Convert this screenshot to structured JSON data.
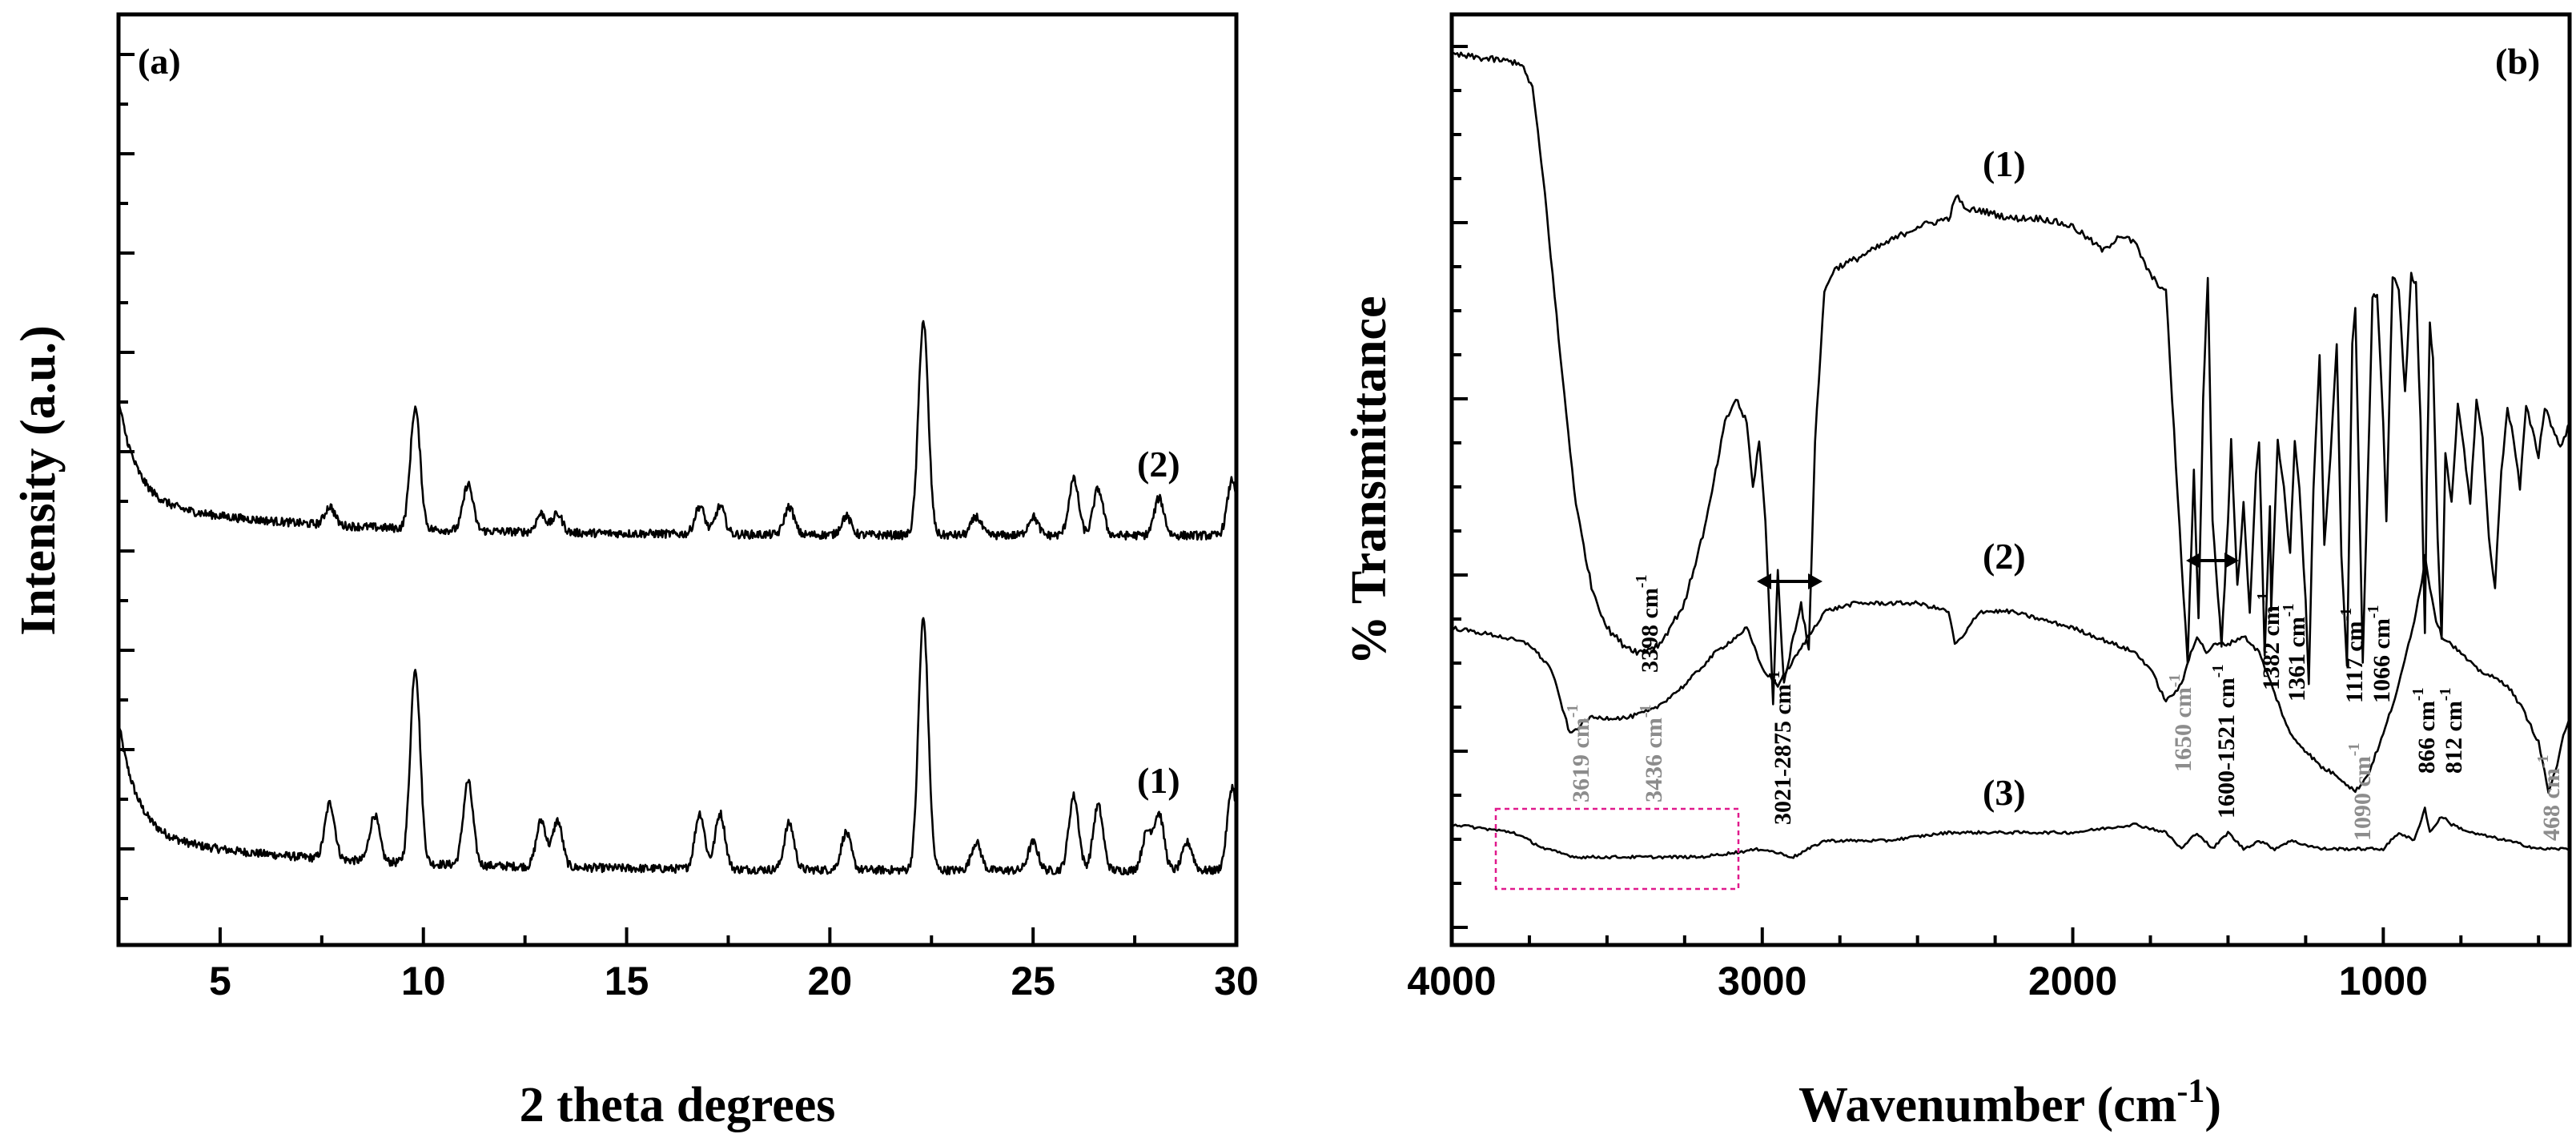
{
  "chart_data": [
    {
      "type": "line",
      "panel": "(a)",
      "title": "",
      "xlabel": "2 theta degrees",
      "ylabel": "Intensity (a.u.)",
      "xlim": [
        2.5,
        30
      ],
      "ylim": [
        0,
        100
      ],
      "xticks": [
        5,
        10,
        15,
        20,
        25,
        30
      ],
      "yticks": "unlabeled",
      "series": [
        {
          "name": "(1)",
          "baseline": 8,
          "start_level": 30,
          "peaks": [
            [
              7.7,
              6
            ],
            [
              8.8,
              5
            ],
            [
              9.8,
              21
            ],
            [
              11.1,
              9
            ],
            [
              12.9,
              5
            ],
            [
              13.3,
              5
            ],
            [
              16.8,
              6
            ],
            [
              17.3,
              6
            ],
            [
              19.0,
              5
            ],
            [
              20.4,
              4
            ],
            [
              22.3,
              27
            ],
            [
              23.6,
              3
            ],
            [
              25.0,
              3
            ],
            [
              26.0,
              8
            ],
            [
              26.6,
              7
            ],
            [
              27.8,
              4
            ],
            [
              28.1,
              6
            ],
            [
              28.8,
              3
            ],
            [
              29.9,
              9
            ]
          ]
        },
        {
          "name": "(2)",
          "baseline": 44,
          "start_level": 64,
          "peaks": [
            [
              7.7,
              2
            ],
            [
              9.8,
              13
            ],
            [
              11.1,
              5
            ],
            [
              12.9,
              2
            ],
            [
              13.3,
              2
            ],
            [
              16.8,
              3
            ],
            [
              17.3,
              3
            ],
            [
              19.0,
              3
            ],
            [
              20.4,
              2
            ],
            [
              22.3,
              23
            ],
            [
              23.6,
              2
            ],
            [
              25.0,
              2
            ],
            [
              26.0,
              6
            ],
            [
              26.6,
              5
            ],
            [
              28.1,
              4
            ],
            [
              29.9,
              6
            ]
          ]
        }
      ]
    },
    {
      "type": "line",
      "panel": "(b)",
      "title": "",
      "xlabel": "Wavenumber (cm",
      "xlabel_sup": "-1",
      "xlabel_close": ")",
      "ylabel": "% Transmittance",
      "xlim": [
        4000,
        400
      ],
      "ylim": [
        0,
        100
      ],
      "xticks": [
        4000,
        3000,
        2000,
        1000
      ],
      "yticks": "unlabeled",
      "series": [
        {
          "name": "(1)",
          "points": [
            [
              4000,
              97
            ],
            [
              3780,
              96
            ],
            [
              3740,
              93
            ],
            [
              3700,
              80
            ],
            [
              3650,
              60
            ],
            [
              3600,
              42
            ],
            [
              3550,
              32
            ],
            [
              3500,
              27
            ],
            [
              3450,
              25
            ],
            [
              3398,
              24
            ],
            [
              3330,
              25
            ],
            [
              3250,
              30
            ],
            [
              3180,
              40
            ],
            [
              3120,
              52
            ],
            [
              3085,
              55
            ],
            [
              3050,
              52
            ],
            [
              3030,
              44
            ],
            [
              3010,
              50
            ],
            [
              2990,
              40
            ],
            [
              2965,
              18
            ],
            [
              2950,
              34
            ],
            [
              2930,
              20
            ],
            [
              2900,
              26
            ],
            [
              2875,
              30
            ],
            [
              2850,
              24
            ],
            [
              2830,
              50
            ],
            [
              2800,
              68
            ],
            [
              2780,
              70
            ],
            [
              2760,
              71
            ],
            [
              2700,
              72
            ],
            [
              2600,
              74
            ],
            [
              2500,
              76
            ],
            [
              2400,
              77
            ],
            [
              2370,
              80
            ],
            [
              2350,
              78
            ],
            [
              2300,
              78
            ],
            [
              2200,
              77
            ],
            [
              2100,
              77
            ],
            [
              2000,
              76
            ],
            [
              1900,
              73
            ],
            [
              1850,
              75
            ],
            [
              1800,
              74
            ],
            [
              1750,
              70
            ],
            [
              1700,
              68
            ],
            [
              1680,
              55
            ],
            [
              1650,
              35
            ],
            [
              1630,
              23
            ],
            [
              1610,
              46
            ],
            [
              1595,
              28
            ],
            [
              1580,
              55
            ],
            [
              1565,
              70
            ],
            [
              1550,
              40
            ],
            [
              1521,
              25
            ],
            [
              1500,
              40
            ],
            [
              1490,
              50
            ],
            [
              1470,
              32
            ],
            [
              1450,
              42
            ],
            [
              1430,
              29
            ],
            [
              1410,
              46
            ],
            [
              1400,
              50
            ],
            [
              1382,
              24
            ],
            [
              1365,
              42
            ],
            [
              1361,
              29
            ],
            [
              1340,
              50
            ],
            [
              1320,
              44
            ],
            [
              1300,
              36
            ],
            [
              1285,
              50
            ],
            [
              1270,
              44
            ],
            [
              1250,
              30
            ],
            [
              1240,
              20
            ],
            [
              1225,
              44
            ],
            [
              1205,
              60
            ],
            [
              1190,
              37
            ],
            [
              1170,
              48
            ],
            [
              1150,
              62
            ],
            [
              1135,
              36
            ],
            [
              1117,
              22
            ],
            [
              1100,
              62
            ],
            [
              1090,
              66
            ],
            [
              1066,
              23
            ],
            [
              1050,
              45
            ],
            [
              1035,
              67
            ],
            [
              1020,
              68
            ],
            [
              1000,
              52
            ],
            [
              990,
              40
            ],
            [
              970,
              70
            ],
            [
              950,
              68
            ],
            [
              930,
              56
            ],
            [
              910,
              70
            ],
            [
              895,
              69
            ],
            [
              880,
              52
            ],
            [
              866,
              26
            ],
            [
              860,
              45
            ],
            [
              850,
              64
            ],
            [
              840,
              60
            ],
            [
              825,
              38
            ],
            [
              812,
              26
            ],
            [
              800,
              48
            ],
            [
              780,
              42
            ],
            [
              760,
              54
            ],
            [
              740,
              49
            ],
            [
              720,
              42
            ],
            [
              700,
              55
            ],
            [
              680,
              50
            ],
            [
              660,
              38
            ],
            [
              640,
              32
            ],
            [
              620,
              46
            ],
            [
              600,
              54
            ],
            [
              580,
              50
            ],
            [
              560,
              44
            ],
            [
              540,
              54
            ],
            [
              520,
              51
            ],
            [
              500,
              48
            ],
            [
              480,
              54
            ],
            [
              460,
              52
            ],
            [
              430,
              49
            ],
            [
              400,
              52
            ]
          ]
        },
        {
          "name": "(2)",
          "points": [
            [
              4000,
              27
            ],
            [
              3850,
              26
            ],
            [
              3750,
              25
            ],
            [
              3680,
              22
            ],
            [
              3619,
              14
            ],
            [
              3560,
              16
            ],
            [
              3500,
              16
            ],
            [
              3436,
              16
            ],
            [
              3350,
              17
            ],
            [
              3250,
              20
            ],
            [
              3150,
              24
            ],
            [
              3080,
              26
            ],
            [
              3050,
              27
            ],
            [
              3000,
              22
            ],
            [
              2950,
              20
            ],
            [
              2900,
              23
            ],
            [
              2850,
              26
            ],
            [
              2800,
              29
            ],
            [
              2700,
              30
            ],
            [
              2500,
              30
            ],
            [
              2400,
              29
            ],
            [
              2380,
              25
            ],
            [
              2350,
              26
            ],
            [
              2320,
              28
            ],
            [
              2300,
              29
            ],
            [
              2200,
              29
            ],
            [
              2000,
              27
            ],
            [
              1800,
              24
            ],
            [
              1750,
              22
            ],
            [
              1700,
              18
            ],
            [
              1650,
              20
            ],
            [
              1620,
              24
            ],
            [
              1600,
              26
            ],
            [
              1570,
              24
            ],
            [
              1540,
              25
            ],
            [
              1500,
              25
            ],
            [
              1450,
              26
            ],
            [
              1400,
              24
            ],
            [
              1350,
              19
            ],
            [
              1300,
              14
            ],
            [
              1200,
              10
            ],
            [
              1150,
              9
            ],
            [
              1090,
              7
            ],
            [
              1050,
              9
            ],
            [
              1000,
              14
            ],
            [
              950,
              20
            ],
            [
              900,
              28
            ],
            [
              870,
              34
            ],
            [
              866,
              36
            ],
            [
              850,
              32
            ],
            [
              830,
              28
            ],
            [
              812,
              26
            ],
            [
              780,
              25
            ],
            [
              700,
              22
            ],
            [
              650,
              21
            ],
            [
              600,
              20
            ],
            [
              550,
              17
            ],
            [
              500,
              13
            ],
            [
              468,
              7
            ],
            [
              440,
              10
            ],
            [
              420,
              14
            ],
            [
              400,
              16
            ]
          ]
        },
        {
          "name": "(3)",
          "points": [
            [
              4000,
              3
            ],
            [
              3800,
              2
            ],
            [
              3700,
              0
            ],
            [
              3600,
              -1
            ],
            [
              3400,
              -1
            ],
            [
              3200,
              -1
            ],
            [
              3000,
              0
            ],
            [
              2900,
              -1
            ],
            [
              2800,
              1
            ],
            [
              2600,
              1
            ],
            [
              2400,
              2
            ],
            [
              2200,
              2
            ],
            [
              2000,
              2
            ],
            [
              1800,
              3
            ],
            [
              1700,
              2
            ],
            [
              1650,
              0
            ],
            [
              1600,
              2
            ],
            [
              1550,
              0
            ],
            [
              1500,
              2
            ],
            [
              1450,
              0
            ],
            [
              1400,
              1
            ],
            [
              1350,
              0
            ],
            [
              1300,
              1
            ],
            [
              1200,
              0
            ],
            [
              1100,
              0
            ],
            [
              1000,
              0
            ],
            [
              950,
              2
            ],
            [
              900,
              1
            ],
            [
              866,
              5
            ],
            [
              850,
              2
            ],
            [
              812,
              4
            ],
            [
              780,
              3
            ],
            [
              720,
              2
            ],
            [
              600,
              1
            ],
            [
              500,
              0
            ],
            [
              400,
              0
            ]
          ]
        }
      ]
    }
  ],
  "labels": {
    "a_series_1": "(1)",
    "a_series_2": "(2)",
    "b_series_1": "(1)",
    "b_series_2": "(2)",
    "b_series_3": "(3)"
  },
  "annotations": {
    "b": [
      {
        "text": "3398 cm",
        "sup": "-1",
        "color": "black"
      },
      {
        "text": "3021-2875 cm",
        "sup": "-1",
        "color": "black"
      },
      {
        "text": "3619 cm",
        "sup": "-1",
        "color": "gray"
      },
      {
        "text": "3436 cm",
        "sup": "-1",
        "color": "gray"
      },
      {
        "text": "1650 cm",
        "sup": "-1",
        "color": "gray"
      },
      {
        "text": "1600-1521 cm",
        "sup": "-1",
        "color": "black"
      },
      {
        "text": "1382 cm",
        "sup": "-1",
        "color": "black"
      },
      {
        "text": "1361 cm",
        "sup": "-1",
        "color": "black"
      },
      {
        "text": "1117 cm",
        "sup": "-1",
        "color": "black"
      },
      {
        "text": "1066 cm",
        "sup": "-1",
        "color": "black"
      },
      {
        "text": "1090 cm",
        "sup": "-1",
        "color": "gray"
      },
      {
        "text": "866 cm",
        "sup": "-1",
        "color": "black"
      },
      {
        "text": "812 cm",
        "sup": "-1",
        "color": "black"
      },
      {
        "text": "468 cm",
        "sup": "-1",
        "color": "gray"
      }
    ]
  },
  "colors": {
    "line": "#000000",
    "gray_annotation": "#8c8c8c",
    "highlight_box": "#e0198c"
  }
}
